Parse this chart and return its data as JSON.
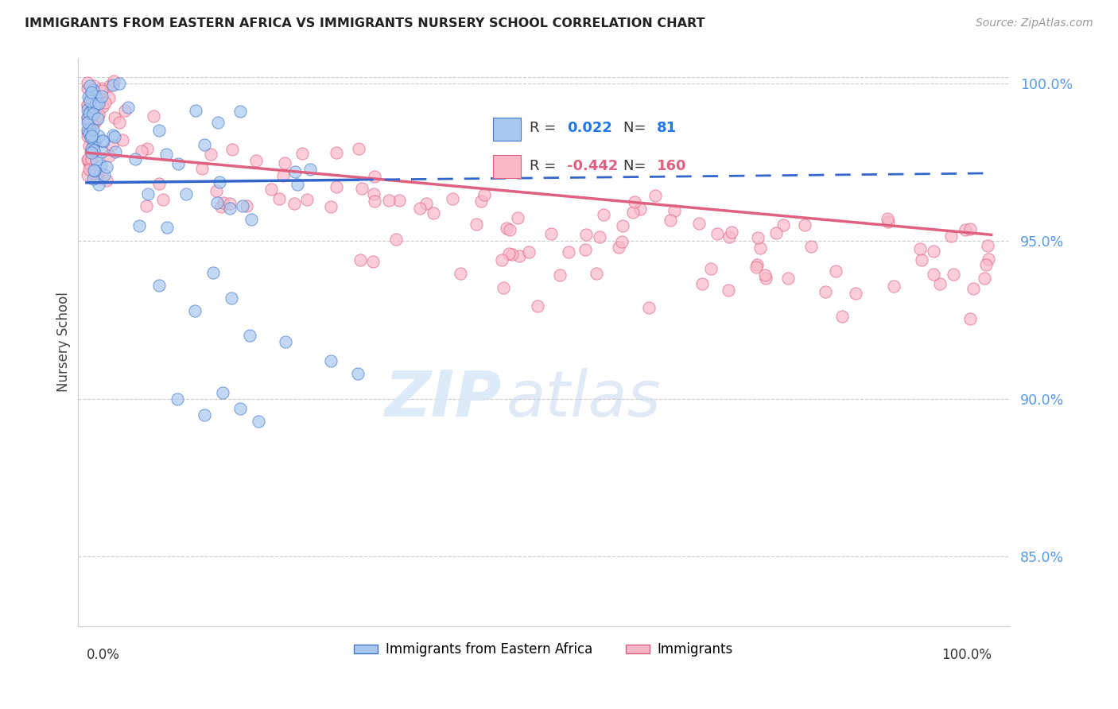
{
  "title": "IMMIGRANTS FROM EASTERN AFRICA VS IMMIGRANTS NURSERY SCHOOL CORRELATION CHART",
  "source": "Source: ZipAtlas.com",
  "ylabel": "Nursery School",
  "legend_blue_r": "0.022",
  "legend_blue_n": "81",
  "legend_pink_r": "-0.442",
  "legend_pink_n": "160",
  "y_tick_vals": [
    0.85,
    0.9,
    0.95,
    1.0
  ],
  "y_tick_labels": [
    "85.0%",
    "90.0%",
    "95.0%",
    "100.0%"
  ],
  "x_min": 0.0,
  "x_max": 1.0,
  "y_min": 0.828,
  "y_max": 1.008,
  "blue_fill": "#a8c8f0",
  "blue_edge": "#4477cc",
  "pink_fill": "#f8b8c8",
  "pink_edge": "#e06080",
  "blue_line_color": "#3366cc",
  "pink_line_color": "#e06080",
  "grid_color": "#cccccc",
  "tick_color": "#5599ee",
  "title_color": "#222222",
  "source_color": "#999999",
  "ylabel_color": "#444444",
  "watermark_zip_color": "#d8e8f8",
  "watermark_atlas_color": "#c8d8f0",
  "legend_border_color": "#bbbbbb",
  "legend_blue_val_color": "#2277ee",
  "legend_pink_val_color": "#e06080"
}
